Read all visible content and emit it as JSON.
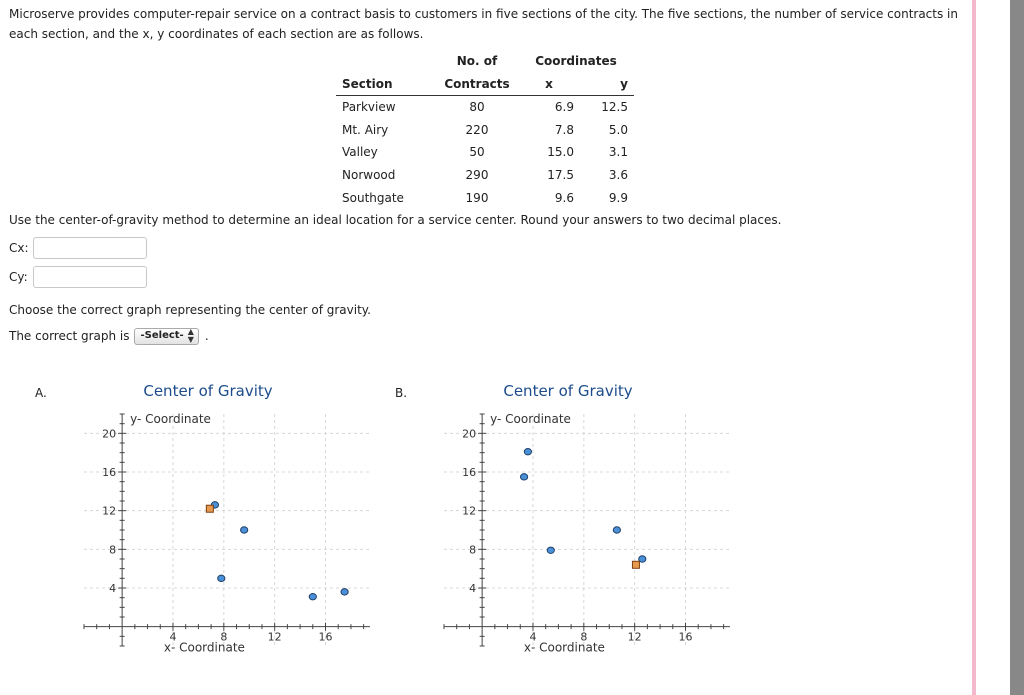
{
  "problem": {
    "intro": "Microserve provides computer-repair service on a contract basis to customers in five sections of the city. The five sections, the number of service contracts in each section, and the x, y coordinates of each section are as follows.",
    "table": {
      "header_no_of": "No. of",
      "header_coordinates": "Coordinates",
      "header_section": "Section",
      "header_contracts": "Contracts",
      "header_x": "x",
      "header_y": "y",
      "rows": [
        {
          "section": "Parkview",
          "contracts": "80",
          "x": "6.9",
          "y": "12.5"
        },
        {
          "section": "Mt. Airy",
          "contracts": "220",
          "x": "7.8",
          "y": "5.0"
        },
        {
          "section": "Valley",
          "contracts": "50",
          "x": "15.0",
          "y": "3.1"
        },
        {
          "section": "Norwood",
          "contracts": "290",
          "x": "17.5",
          "y": "3.6"
        },
        {
          "section": "Southgate",
          "contracts": "190",
          "x": "9.6",
          "y": "9.9"
        }
      ]
    },
    "question": "Use the center-of-gravity method to determine an ideal location for a service center. Round your answers to two decimal places.",
    "cx_label": "Cx:",
    "cy_label": "Cy:",
    "cx_value": "",
    "cy_value": "",
    "choose_text": "Choose the correct graph representing the center of gravity.",
    "correct_text": "The correct graph is",
    "select_value": "-Select-",
    "period": "."
  },
  "colors": {
    "title": "#1c4c8c",
    "marker_fill": "#4a90d9",
    "center_fill": "#e89b4f",
    "axis": "#444444",
    "grid": "#d8d8d8"
  },
  "chart_data": [
    {
      "type": "scatter",
      "panel_label": "A.",
      "title": "Center of Gravity",
      "xlabel": "x- Coordinate",
      "ylabel": "y- Coordinate",
      "xlim": [
        -3,
        19.5
      ],
      "ylim": [
        -2,
        22
      ],
      "xticks": [
        4,
        8,
        12,
        16
      ],
      "yticks": [
        4,
        8,
        12,
        16,
        20
      ],
      "sections": [
        [
          7.3,
          12.6
        ],
        [
          9.6,
          10.0
        ],
        [
          7.8,
          5.0
        ],
        [
          15.0,
          3.1
        ],
        [
          17.5,
          3.6
        ]
      ],
      "center": [
        6.9,
        12.2
      ]
    },
    {
      "type": "scatter",
      "panel_label": "B.",
      "title": "Center of Gravity",
      "xlabel": "x- Coordinate",
      "ylabel": "y- Coordinate",
      "xlim": [
        -3,
        19.5
      ],
      "ylim": [
        -2,
        22
      ],
      "xticks": [
        4,
        8,
        12,
        16
      ],
      "yticks": [
        4,
        8,
        12,
        16,
        20
      ],
      "sections": [
        [
          3.6,
          18.1
        ],
        [
          3.3,
          15.5
        ],
        [
          5.4,
          7.9
        ],
        [
          10.6,
          10.0
        ],
        [
          12.6,
          7.0
        ]
      ],
      "center": [
        12.1,
        6.4
      ]
    }
  ]
}
